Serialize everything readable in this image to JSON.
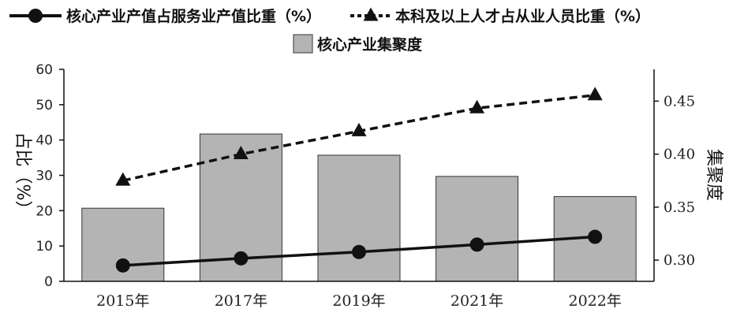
{
  "chart_data": {
    "type": "bar",
    "categories": [
      "2015年",
      "2017年",
      "2019年",
      "2021年",
      "2022年"
    ],
    "series": [
      {
        "name": "核心产业集聚度",
        "kind": "bar",
        "axis": "right",
        "values": [
          0.349,
          0.419,
          0.399,
          0.379,
          0.36
        ],
        "color": "#b4b4b4"
      },
      {
        "name": "核心产业产值占服务业产值比重（%）",
        "kind": "line",
        "axis": "left",
        "values": [
          4.5,
          6.5,
          8.3,
          10.4,
          12.6
        ],
        "color": "#111111",
        "marker": "circle",
        "dash": "solid"
      },
      {
        "name": "本科及以上人才占从业人员比重（%）",
        "kind": "line",
        "axis": "left",
        "values": [
          28.5,
          36.0,
          42.5,
          49.0,
          52.7
        ],
        "color": "#111111",
        "marker": "triangle",
        "dash": "dashed"
      }
    ],
    "left_axis": {
      "label": "占比（%）",
      "ylim": [
        0,
        60
      ],
      "ticks": [
        "0",
        "10",
        "20",
        "30",
        "40",
        "50",
        "60"
      ]
    },
    "right_axis": {
      "label": "集聚度",
      "ylim": [
        0.28,
        0.48
      ],
      "ticks": [
        "0.30",
        "0.35",
        "0.40",
        "0.45"
      ],
      "tick_values": [
        0.3,
        0.35,
        0.4,
        0.45
      ]
    },
    "grid": false,
    "legend_position": "top"
  }
}
